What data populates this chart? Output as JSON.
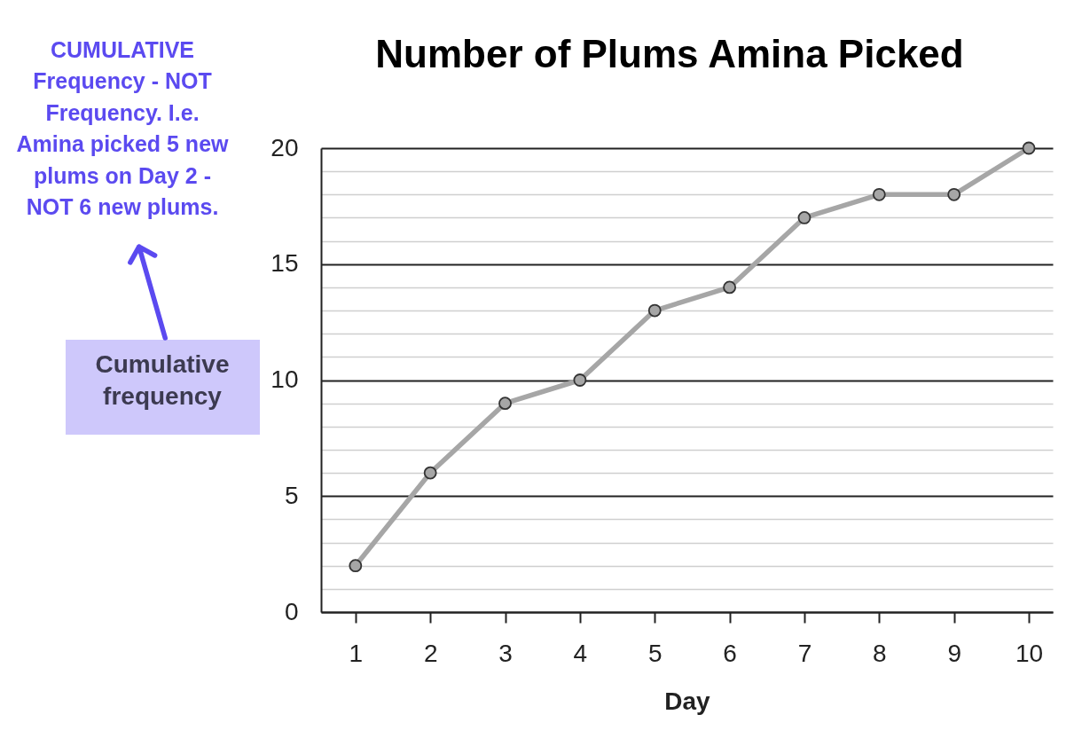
{
  "chart_data": {
    "type": "line",
    "title": "Number of Plums Amina Picked",
    "xlabel": "Day",
    "ylabel": "Cumulative frequency",
    "annotations": [
      "CUMULATIVE Frequency - NOT Frequency. I.e. Amina picked 5 new plums on Day 2 - NOT 6 new plums."
    ],
    "categories": [
      "1",
      "2",
      "3",
      "4",
      "5",
      "6",
      "7",
      "8",
      "9",
      "10"
    ],
    "series": [
      {
        "color": "#a6a6a6",
        "values": [
          2,
          6,
          9,
          10,
          13,
          14,
          17,
          18,
          18,
          20
        ]
      }
    ],
    "ylim": [
      0,
      20
    ],
    "yticks": [
      0,
      {
        "value": 1,
        "label": null
      },
      {
        "value": 2,
        "label": null
      },
      {
        "value": 3,
        "label": null
      },
      {
        "value": 4,
        "label": null
      },
      5,
      {
        "value": 6,
        "label": null
      },
      {
        "value": 7,
        "label": null
      },
      {
        "value": 8,
        "label": null
      },
      {
        "value": 9,
        "label": null
      },
      10,
      {
        "value": 11,
        "label": null
      },
      {
        "value": 12,
        "label": null
      },
      {
        "value": 13,
        "label": null
      },
      {
        "value": 14,
        "label": null
      },
      15,
      {
        "value": 16,
        "label": null
      },
      {
        "value": 17,
        "label": null
      },
      {
        "value": 18,
        "label": null
      },
      {
        "value": 19,
        "label": null
      },
      20
    ],
    "grid": "y",
    "marker": "circle",
    "line_style": "solid"
  }
}
